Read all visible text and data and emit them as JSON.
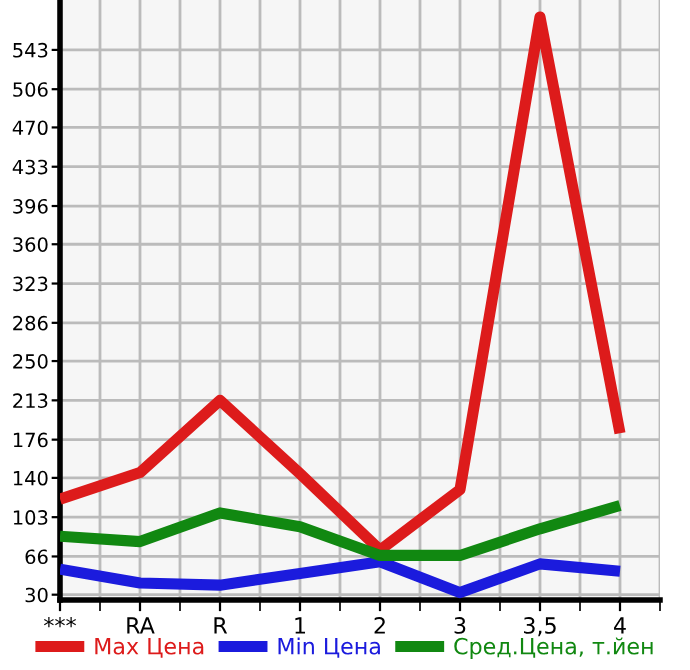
{
  "chart_data": {
    "type": "line",
    "categories": [
      "***",
      "RA",
      "R",
      "1",
      "2",
      "3",
      "3,5",
      "4"
    ],
    "series": [
      {
        "name": "Max Цена",
        "color": "#dd1b1b",
        "values": [
          120,
          145,
          213,
          144,
          72,
          129,
          574,
          182
        ]
      },
      {
        "name": "Min Цена",
        "color": "#1b1bdd",
        "values": [
          54,
          41,
          39,
          50,
          61,
          32,
          59,
          52
        ]
      },
      {
        "name": "Сред.Цена, т.йен",
        "color": "#118811",
        "values": [
          85,
          80,
          107,
          94,
          67,
          67,
          92,
          114
        ]
      }
    ],
    "ylim": [
      25,
      590
    ],
    "yticks": [
      30,
      66,
      103,
      140,
      176,
      213,
      250,
      286,
      323,
      360,
      396,
      433,
      470,
      506,
      543
    ],
    "grid": true,
    "legend": "bottom",
    "marker": "none",
    "line_style": "solid"
  }
}
